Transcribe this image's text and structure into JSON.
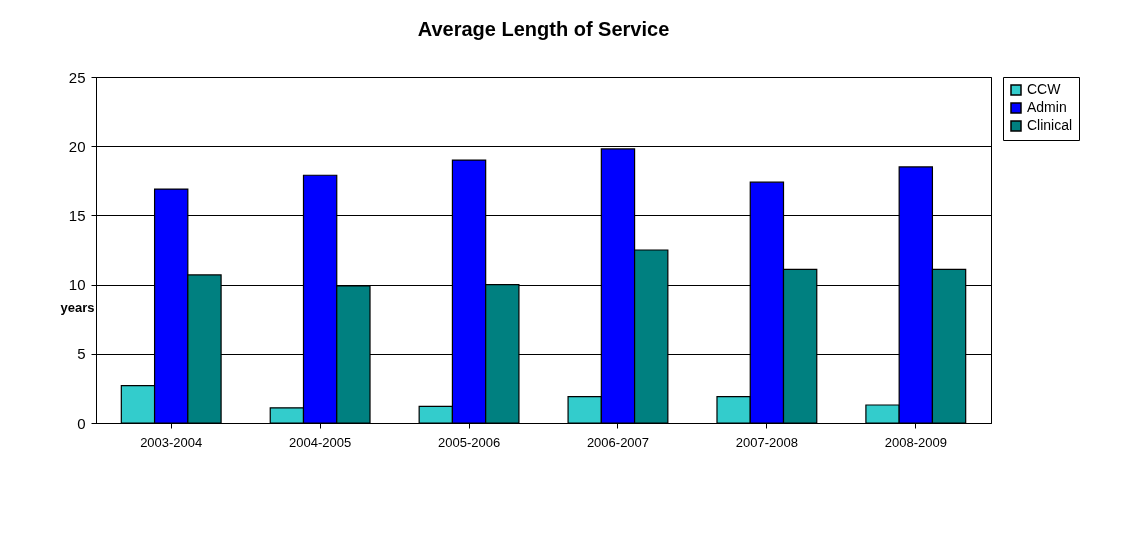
{
  "chart_data": {
    "type": "bar",
    "title": "Average Length of Service",
    "ylabel": "years",
    "categories": [
      "2003-2004",
      "2004-2005",
      "2005-2006",
      "2006-2007",
      "2007-2008",
      "2008-2009"
    ],
    "series": [
      {
        "name": "CCW",
        "color": "#33cccc",
        "values": [
          2.7,
          1.1,
          1.2,
          1.9,
          1.9,
          1.3
        ]
      },
      {
        "name": "Admin",
        "color": "#0000ff",
        "values": [
          16.9,
          17.9,
          19.0,
          19.8,
          17.4,
          18.5
        ]
      },
      {
        "name": "Clinical",
        "color": "#008080",
        "values": [
          10.7,
          9.9,
          10.0,
          12.5,
          11.1,
          11.1
        ]
      }
    ],
    "ylim": [
      0,
      25
    ],
    "yticks": [
      0,
      5,
      10,
      15,
      20,
      25
    ],
    "grid": "y",
    "legend": "right"
  }
}
